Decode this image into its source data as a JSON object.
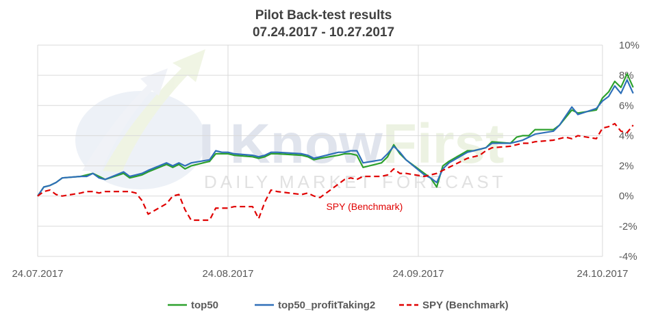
{
  "watermark": {
    "brand_part1": "I Know",
    "brand_part2": "First",
    "tagline": "DAILY MARKET FORECAST"
  },
  "chart_data": {
    "type": "line",
    "title": "Pilot Back-test results",
    "subtitle": "07.24.2017 - 10.27.2017",
    "xlabel": "",
    "ylabel": "",
    "x_range": [
      "2017-07-24",
      "2017-10-27"
    ],
    "x_ticks": [
      {
        "date": "2017-07-24",
        "label": "24.07.2017"
      },
      {
        "date": "2017-08-24",
        "label": "24.08.2017"
      },
      {
        "date": "2017-09-24",
        "label": "24.09.2017"
      },
      {
        "date": "2017-10-24",
        "label": "24.10.2017"
      }
    ],
    "y_axis_side": "right",
    "ylim": [
      -4,
      10
    ],
    "y_ticks": [
      -4,
      -2,
      0,
      2,
      4,
      6,
      8,
      10
    ],
    "y_tick_labels": [
      "-4%",
      "-2%",
      "0%",
      "2%",
      "4%",
      "6%",
      "8%",
      "10%"
    ],
    "grid": true,
    "legend_position": "bottom",
    "series": [
      {
        "name": "top50",
        "color": "#2ca02c",
        "dash": "solid",
        "points": [
          [
            "2017-07-24",
            0
          ],
          [
            "2017-07-25",
            0.6
          ],
          [
            "2017-07-26",
            0.7
          ],
          [
            "2017-07-27",
            0.9
          ],
          [
            "2017-07-28",
            1.2
          ],
          [
            "2017-07-31",
            1.3
          ],
          [
            "2017-08-01",
            1.4
          ],
          [
            "2017-08-02",
            1.5
          ],
          [
            "2017-08-03",
            1.3
          ],
          [
            "2017-08-04",
            1.1
          ],
          [
            "2017-08-07",
            1.5
          ],
          [
            "2017-08-08",
            1.2
          ],
          [
            "2017-08-09",
            1.3
          ],
          [
            "2017-08-10",
            1.4
          ],
          [
            "2017-08-11",
            1.6
          ],
          [
            "2017-08-14",
            2.1
          ],
          [
            "2017-08-15",
            1.9
          ],
          [
            "2017-08-16",
            2.1
          ],
          [
            "2017-08-17",
            1.8
          ],
          [
            "2017-08-18",
            2.0
          ],
          [
            "2017-08-21",
            2.3
          ],
          [
            "2017-08-22",
            2.8
          ],
          [
            "2017-08-23",
            2.8
          ],
          [
            "2017-08-24",
            2.8
          ],
          [
            "2017-08-25",
            2.7
          ],
          [
            "2017-08-28",
            2.6
          ],
          [
            "2017-08-29",
            2.5
          ],
          [
            "2017-08-30",
            2.6
          ],
          [
            "2017-08-31",
            2.8
          ],
          [
            "2017-09-01",
            2.8
          ],
          [
            "2017-09-05",
            2.7
          ],
          [
            "2017-09-06",
            2.6
          ],
          [
            "2017-09-07",
            2.4
          ],
          [
            "2017-09-08",
            2.5
          ],
          [
            "2017-09-11",
            2.7
          ],
          [
            "2017-09-12",
            2.8
          ],
          [
            "2017-09-13",
            2.8
          ],
          [
            "2017-09-14",
            2.7
          ],
          [
            "2017-09-15",
            1.9
          ],
          [
            "2017-09-18",
            2.2
          ],
          [
            "2017-09-19",
            2.6
          ],
          [
            "2017-09-20",
            3.4
          ],
          [
            "2017-09-21",
            2.8
          ],
          [
            "2017-09-22",
            2.4
          ],
          [
            "2017-09-25",
            1.5
          ],
          [
            "2017-09-26",
            1.2
          ],
          [
            "2017-09-27",
            0.6
          ],
          [
            "2017-09-28",
            2.0
          ],
          [
            "2017-09-29",
            2.3
          ],
          [
            "2017-10-02",
            3.0
          ],
          [
            "2017-10-03",
            3.0
          ],
          [
            "2017-10-04",
            3.1
          ],
          [
            "2017-10-05",
            3.2
          ],
          [
            "2017-10-06",
            3.6
          ],
          [
            "2017-10-09",
            3.5
          ],
          [
            "2017-10-10",
            3.9
          ],
          [
            "2017-10-11",
            4.0
          ],
          [
            "2017-10-12",
            4.0
          ],
          [
            "2017-10-13",
            4.4
          ],
          [
            "2017-10-16",
            4.4
          ],
          [
            "2017-10-17",
            4.7
          ],
          [
            "2017-10-18",
            5.2
          ],
          [
            "2017-10-19",
            5.7
          ],
          [
            "2017-10-20",
            5.5
          ],
          [
            "2017-10-23",
            5.7
          ],
          [
            "2017-10-24",
            6.5
          ],
          [
            "2017-10-25",
            6.9
          ],
          [
            "2017-10-26",
            7.6
          ],
          [
            "2017-10-27",
            7.2
          ],
          [
            "2017-10-28",
            8.1
          ],
          [
            "2017-10-29",
            7.2
          ]
        ]
      },
      {
        "name": "top50_profitTaking2",
        "color": "#2e6fb8",
        "dash": "solid",
        "points": [
          [
            "2017-07-24",
            0
          ],
          [
            "2017-07-25",
            0.6
          ],
          [
            "2017-07-26",
            0.7
          ],
          [
            "2017-07-27",
            0.9
          ],
          [
            "2017-07-28",
            1.2
          ],
          [
            "2017-07-31",
            1.3
          ],
          [
            "2017-08-01",
            1.3
          ],
          [
            "2017-08-02",
            1.5
          ],
          [
            "2017-08-03",
            1.2
          ],
          [
            "2017-08-04",
            1.1
          ],
          [
            "2017-08-07",
            1.6
          ],
          [
            "2017-08-08",
            1.3
          ],
          [
            "2017-08-09",
            1.4
          ],
          [
            "2017-08-10",
            1.5
          ],
          [
            "2017-08-11",
            1.7
          ],
          [
            "2017-08-14",
            2.2
          ],
          [
            "2017-08-15",
            2.0
          ],
          [
            "2017-08-16",
            2.2
          ],
          [
            "2017-08-17",
            2.0
          ],
          [
            "2017-08-18",
            2.2
          ],
          [
            "2017-08-21",
            2.4
          ],
          [
            "2017-08-22",
            3.0
          ],
          [
            "2017-08-23",
            2.9
          ],
          [
            "2017-08-24",
            2.9
          ],
          [
            "2017-08-25",
            2.8
          ],
          [
            "2017-08-28",
            2.7
          ],
          [
            "2017-08-29",
            2.6
          ],
          [
            "2017-08-30",
            2.7
          ],
          [
            "2017-08-31",
            2.9
          ],
          [
            "2017-09-01",
            2.9
          ],
          [
            "2017-09-05",
            2.8
          ],
          [
            "2017-09-06",
            2.7
          ],
          [
            "2017-09-07",
            2.5
          ],
          [
            "2017-09-08",
            2.6
          ],
          [
            "2017-09-11",
            2.9
          ],
          [
            "2017-09-12",
            2.9
          ],
          [
            "2017-09-13",
            3.0
          ],
          [
            "2017-09-14",
            3.0
          ],
          [
            "2017-09-15",
            2.2
          ],
          [
            "2017-09-18",
            2.4
          ],
          [
            "2017-09-19",
            2.8
          ],
          [
            "2017-09-20",
            3.3
          ],
          [
            "2017-09-21",
            2.9
          ],
          [
            "2017-09-22",
            2.4
          ],
          [
            "2017-09-25",
            1.4
          ],
          [
            "2017-09-26",
            1.2
          ],
          [
            "2017-09-27",
            0.9
          ],
          [
            "2017-09-28",
            1.8
          ],
          [
            "2017-09-29",
            2.2
          ],
          [
            "2017-10-02",
            2.9
          ],
          [
            "2017-10-03",
            3.0
          ],
          [
            "2017-10-04",
            3.1
          ],
          [
            "2017-10-05",
            3.2
          ],
          [
            "2017-10-06",
            3.5
          ],
          [
            "2017-10-09",
            3.5
          ],
          [
            "2017-10-10",
            3.6
          ],
          [
            "2017-10-11",
            3.7
          ],
          [
            "2017-10-12",
            3.9
          ],
          [
            "2017-10-13",
            4.1
          ],
          [
            "2017-10-16",
            4.3
          ],
          [
            "2017-10-17",
            4.7
          ],
          [
            "2017-10-18",
            5.3
          ],
          [
            "2017-10-19",
            5.9
          ],
          [
            "2017-10-20",
            5.4
          ],
          [
            "2017-10-23",
            5.8
          ],
          [
            "2017-10-24",
            6.3
          ],
          [
            "2017-10-25",
            6.6
          ],
          [
            "2017-10-26",
            7.3
          ],
          [
            "2017-10-27",
            6.8
          ],
          [
            "2017-10-28",
            7.7
          ],
          [
            "2017-10-29",
            6.8
          ]
        ]
      },
      {
        "name": "SPY (Benchmark)",
        "color": "#e00000",
        "dash": "dashed",
        "points": [
          [
            "2017-07-24",
            0
          ],
          [
            "2017-07-25",
            0.3
          ],
          [
            "2017-07-26",
            0.4
          ],
          [
            "2017-07-27",
            0.1
          ],
          [
            "2017-07-28",
            0.0
          ],
          [
            "2017-07-31",
            0.2
          ],
          [
            "2017-08-01",
            0.3
          ],
          [
            "2017-08-02",
            0.3
          ],
          [
            "2017-08-03",
            0.2
          ],
          [
            "2017-08-04",
            0.3
          ],
          [
            "2017-08-07",
            0.3
          ],
          [
            "2017-08-08",
            0.3
          ],
          [
            "2017-08-09",
            0.2
          ],
          [
            "2017-08-10",
            -0.3
          ],
          [
            "2017-08-11",
            -1.2
          ],
          [
            "2017-08-14",
            -0.5
          ],
          [
            "2017-08-15",
            0.0
          ],
          [
            "2017-08-16",
            0.1
          ],
          [
            "2017-08-17",
            -0.9
          ],
          [
            "2017-08-18",
            -1.6
          ],
          [
            "2017-08-21",
            -1.6
          ],
          [
            "2017-08-22",
            -0.8
          ],
          [
            "2017-08-23",
            -0.8
          ],
          [
            "2017-08-24",
            -0.8
          ],
          [
            "2017-08-25",
            -0.7
          ],
          [
            "2017-08-28",
            -0.7
          ],
          [
            "2017-08-29",
            -1.5
          ],
          [
            "2017-08-30",
            -0.4
          ],
          [
            "2017-08-31",
            0.4
          ],
          [
            "2017-09-01",
            0.3
          ],
          [
            "2017-09-05",
            0.1
          ],
          [
            "2017-09-06",
            0.2
          ],
          [
            "2017-09-07",
            0.0
          ],
          [
            "2017-09-08",
            -0.1
          ],
          [
            "2017-09-11",
            0.8
          ],
          [
            "2017-09-12",
            1.1
          ],
          [
            "2017-09-13",
            1.2
          ],
          [
            "2017-09-14",
            1.1
          ],
          [
            "2017-09-15",
            1.3
          ],
          [
            "2017-09-18",
            1.3
          ],
          [
            "2017-09-19",
            1.4
          ],
          [
            "2017-09-20",
            1.8
          ],
          [
            "2017-09-21",
            1.5
          ],
          [
            "2017-09-22",
            1.5
          ],
          [
            "2017-09-25",
            1.3
          ],
          [
            "2017-09-26",
            1.4
          ],
          [
            "2017-09-27",
            1.5
          ],
          [
            "2017-09-28",
            1.7
          ],
          [
            "2017-09-29",
            1.9
          ],
          [
            "2017-10-02",
            2.5
          ],
          [
            "2017-10-03",
            2.6
          ],
          [
            "2017-10-04",
            2.7
          ],
          [
            "2017-10-05",
            3.0
          ],
          [
            "2017-10-06",
            3.2
          ],
          [
            "2017-10-09",
            3.3
          ],
          [
            "2017-10-10",
            3.4
          ],
          [
            "2017-10-11",
            3.5
          ],
          [
            "2017-10-12",
            3.5
          ],
          [
            "2017-10-13",
            3.6
          ],
          [
            "2017-10-16",
            3.7
          ],
          [
            "2017-10-17",
            3.8
          ],
          [
            "2017-10-18",
            3.9
          ],
          [
            "2017-10-19",
            3.8
          ],
          [
            "2017-10-20",
            4.0
          ],
          [
            "2017-10-23",
            3.8
          ],
          [
            "2017-10-24",
            4.5
          ],
          [
            "2017-10-25",
            4.6
          ],
          [
            "2017-10-26",
            4.8
          ],
          [
            "2017-10-27",
            4.3
          ],
          [
            "2017-10-28",
            4.2
          ],
          [
            "2017-10-29",
            4.7
          ]
        ]
      }
    ],
    "annotations": [
      {
        "text": "SPY (Benchmark)",
        "date": "2017-09-09",
        "value": -0.7,
        "color": "#e00000"
      }
    ]
  }
}
